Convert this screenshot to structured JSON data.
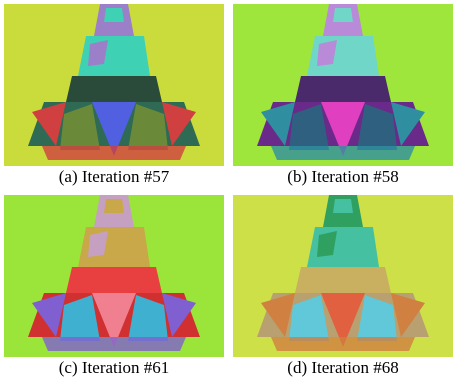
{
  "figure": {
    "panels": [
      {
        "caption": "(a) Iteration #57"
      },
      {
        "caption": "(b) Iteration #58"
      },
      {
        "caption": "(c) Iteration #61"
      },
      {
        "caption": "(d) Iteration #68"
      }
    ]
  }
}
